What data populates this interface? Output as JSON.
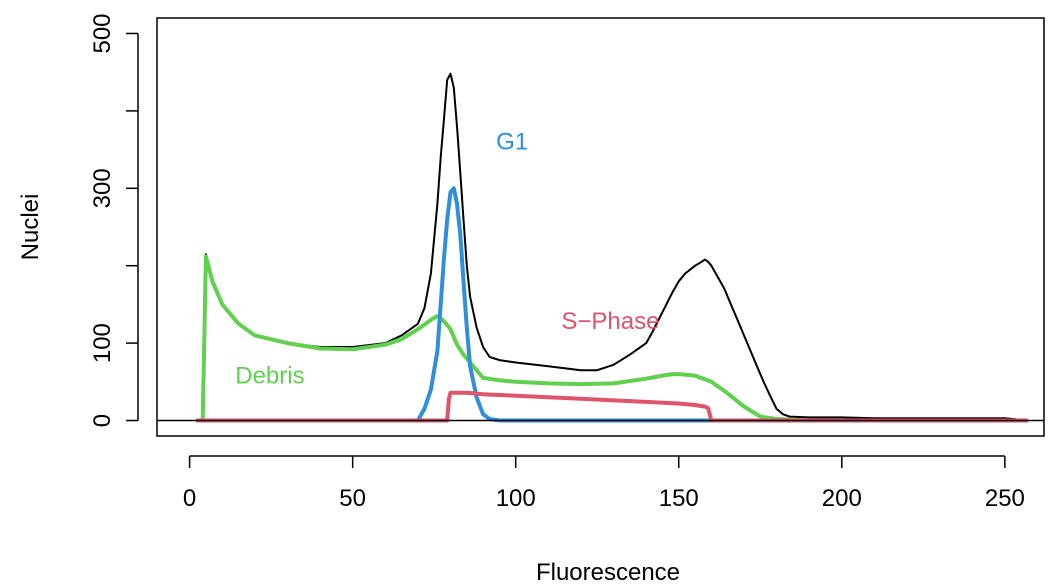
{
  "chart_data": {
    "type": "line",
    "xlabel": "Fluorescence",
    "ylabel": "Nuclei",
    "xlim": [
      -10,
      262
    ],
    "ylim": [
      -20,
      520
    ],
    "x_ticks": [
      0,
      50,
      100,
      150,
      200,
      250
    ],
    "x_tick_labels": [
      "0",
      "50",
      "100",
      "150",
      "200",
      "250"
    ],
    "y_ticks": [
      0,
      100,
      300,
      500
    ],
    "y_tick_labels": [
      "0",
      "100",
      "300",
      "500"
    ],
    "y_minor_ticks": [
      200,
      400
    ],
    "zero_line": 0,
    "grid": false,
    "annotations": [
      {
        "text": "G1",
        "x": 94,
        "y": 350,
        "color": "#2f8fdc"
      },
      {
        "text": "S−Phase",
        "x": 114,
        "y": 118,
        "color": "#df536b"
      },
      {
        "text": "Debris",
        "x": 14,
        "y": 48,
        "color": "#61d04f"
      }
    ],
    "series": [
      {
        "name": "",
        "color": "#000000",
        "x": [
          2,
          3,
          4,
          5,
          7,
          10,
          15,
          20,
          30,
          40,
          50,
          60,
          65,
          70,
          72,
          74,
          76,
          77,
          78,
          79,
          80,
          81,
          82,
          83,
          84,
          85,
          86,
          88,
          90,
          92,
          95,
          100,
          110,
          120,
          125,
          130,
          135,
          140,
          142,
          145,
          148,
          150,
          152,
          155,
          157,
          158,
          159,
          160,
          162,
          164,
          166,
          168,
          170,
          172,
          174,
          176,
          178,
          180,
          182,
          184,
          190,
          200,
          210,
          220,
          230,
          240,
          250,
          257
        ],
        "y": [
          0,
          0,
          0,
          215,
          180,
          150,
          125,
          110,
          100,
          95,
          95,
          100,
          110,
          125,
          145,
          190,
          280,
          340,
          390,
          440,
          448,
          430,
          380,
          320,
          260,
          200,
          160,
          120,
          95,
          82,
          78,
          75,
          70,
          65,
          65,
          72,
          85,
          100,
          115,
          140,
          165,
          180,
          190,
          200,
          205,
          208,
          205,
          200,
          185,
          170,
          150,
          130,
          110,
          90,
          70,
          50,
          32,
          15,
          8,
          5,
          4,
          4,
          3,
          3,
          3,
          3,
          3,
          0
        ]
      },
      {
        "name": "",
        "color": "#61d04f",
        "x": [
          2,
          4,
          5,
          7,
          10,
          15,
          20,
          30,
          40,
          50,
          60,
          65,
          70,
          74,
          76,
          77,
          78,
          80,
          82,
          84,
          86,
          88,
          90,
          95,
          100,
          110,
          120,
          130,
          140,
          145,
          148,
          150,
          155,
          160,
          165,
          170,
          175,
          180,
          185,
          190,
          200,
          220,
          240,
          257
        ],
        "y": [
          0,
          0,
          212,
          180,
          150,
          125,
          110,
          100,
          93,
          92,
          98,
          105,
          118,
          130,
          135,
          132,
          128,
          118,
          98,
          85,
          75,
          65,
          55,
          52,
          50,
          48,
          47,
          48,
          54,
          58,
          60,
          60,
          58,
          50,
          35,
          18,
          5,
          2,
          1,
          0,
          0,
          0,
          0,
          0
        ]
      },
      {
        "name": "",
        "color": "#2f8fdc",
        "x": [
          2,
          50,
          70,
          72,
          74,
          76,
          77,
          78,
          79,
          80,
          81,
          82,
          83,
          84,
          85,
          86,
          88,
          90,
          92,
          95,
          100,
          150,
          200,
          257
        ],
        "y": [
          0,
          0,
          0,
          15,
          40,
          90,
          150,
          210,
          260,
          295,
          300,
          280,
          240,
          180,
          120,
          70,
          30,
          8,
          2,
          0,
          0,
          0,
          0,
          0
        ]
      },
      {
        "name": "",
        "color": "#df536b",
        "x": [
          2,
          50,
          79,
          79.5,
          80,
          85,
          90,
          95,
          100,
          110,
          120,
          130,
          140,
          150,
          155,
          158,
          159,
          160,
          200,
          257
        ],
        "y": [
          0,
          0,
          0,
          28,
          36,
          36,
          34,
          33,
          32,
          30,
          28,
          26,
          24,
          22,
          20,
          18,
          16,
          0,
          0,
          0
        ]
      }
    ]
  }
}
